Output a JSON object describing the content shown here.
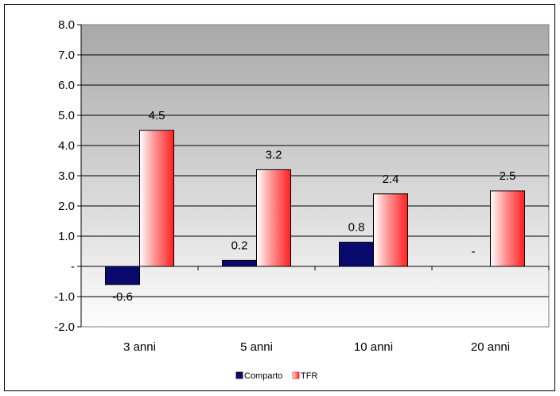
{
  "chart_data": {
    "type": "bar",
    "categories": [
      "3 anni",
      "5 anni",
      "10 anni",
      "20 anni"
    ],
    "series": [
      {
        "name": "Comparto",
        "values": [
          -0.6,
          0.2,
          0.8,
          null
        ],
        "labels": [
          "-0.6",
          "0.2",
          "0.8",
          "-"
        ],
        "color": "#0a0a6e"
      },
      {
        "name": "TFR",
        "values": [
          4.5,
          3.2,
          2.4,
          2.5
        ],
        "labels": [
          "4.5",
          "3.2",
          "2.4",
          "2.5"
        ],
        "color": "#ff3030"
      }
    ],
    "ylim": [
      -2.0,
      8.0
    ],
    "yticks": [
      8.0,
      7.0,
      6.0,
      5.0,
      4.0,
      3.0,
      2.0,
      1.0,
      0.0,
      -1.0,
      -2.0
    ],
    "ytick_labels": [
      "8.0",
      "7.0",
      "6.0",
      "5.0",
      "4.0",
      "3.0",
      "2.0",
      "1.0",
      "-",
      "-1.0",
      "-2.0"
    ],
    "grid": true,
    "legend_position": "bottom"
  }
}
